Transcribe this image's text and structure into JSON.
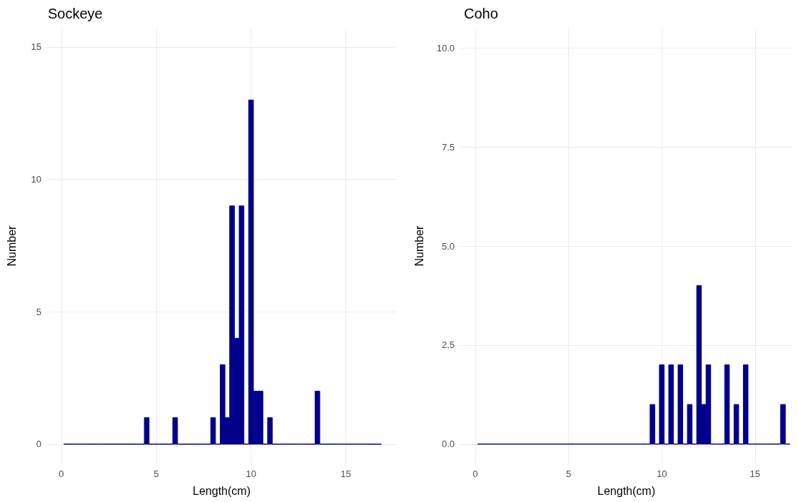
{
  "chart_data": [
    {
      "type": "histogram",
      "title": "Sockeye",
      "xlabel": "Length(cm)",
      "ylabel": "Number",
      "bins": [
        0.125,
        0.375,
        0.625,
        0.875,
        1.125,
        1.375,
        1.625,
        1.875,
        2.125,
        2.375,
        2.625,
        2.875,
        3.125,
        3.375,
        3.625,
        3.875,
        4.125,
        4.375,
        4.625,
        4.875,
        5.125,
        5.375,
        5.625,
        5.875,
        6.125,
        6.375,
        6.625,
        6.875,
        7.125,
        7.375,
        7.625,
        7.875,
        8.125,
        8.375,
        8.625,
        8.875,
        9.125,
        9.375,
        9.625,
        9.875,
        10.125,
        10.375,
        10.625,
        10.875,
        11.125,
        11.375,
        11.625,
        11.875,
        12.125,
        12.375,
        12.625,
        12.875,
        13.125,
        13.375,
        13.625,
        13.875,
        14.125,
        14.375,
        14.625,
        14.875,
        15.125,
        15.375,
        15.625,
        15.875,
        16.125,
        16.375,
        16.625,
        16.875
      ],
      "values": [
        0,
        0,
        0,
        0,
        0,
        0,
        0,
        0,
        0,
        0,
        0,
        0,
        0,
        0,
        0,
        0,
        0,
        1,
        0,
        0,
        0,
        0,
        0,
        1,
        0,
        0,
        0,
        0,
        0,
        0,
        0,
        1,
        0,
        3,
        1,
        9,
        4,
        9,
        0,
        13,
        2,
        2,
        0,
        1,
        0,
        0,
        0,
        0,
        0,
        0,
        0,
        0,
        0,
        2,
        0,
        0,
        0,
        0,
        0,
        0,
        0,
        0,
        0,
        0,
        0,
        0,
        0
      ],
      "color": "#00008b",
      "xlim": [
        -0.75,
        17.65
      ],
      "xticks": [
        0,
        5,
        10,
        15
      ],
      "ylim": [
        -0.73,
        15.7
      ],
      "yticks": [
        0,
        5,
        10,
        15
      ],
      "grid": true
    },
    {
      "type": "histogram",
      "title": "Coho",
      "xlabel": "Length(cm)",
      "ylabel": "Number",
      "bins": [
        0.125,
        0.375,
        0.625,
        0.875,
        1.125,
        1.375,
        1.625,
        1.875,
        2.125,
        2.375,
        2.625,
        2.875,
        3.125,
        3.375,
        3.625,
        3.875,
        4.125,
        4.375,
        4.625,
        4.875,
        5.125,
        5.375,
        5.625,
        5.875,
        6.125,
        6.375,
        6.625,
        6.875,
        7.125,
        7.375,
        7.625,
        7.875,
        8.125,
        8.375,
        8.625,
        8.875,
        9.125,
        9.375,
        9.625,
        9.875,
        10.125,
        10.375,
        10.625,
        10.875,
        11.125,
        11.375,
        11.625,
        11.875,
        12.125,
        12.375,
        12.625,
        12.875,
        13.125,
        13.375,
        13.625,
        13.875,
        14.125,
        14.375,
        14.625,
        14.875,
        15.125,
        15.375,
        15.625,
        15.875,
        16.125,
        16.375,
        16.625,
        16.875
      ],
      "values": [
        0,
        0,
        0,
        0,
        0,
        0,
        0,
        0,
        0,
        0,
        0,
        0,
        0,
        0,
        0,
        0,
        0,
        0,
        0,
        0,
        0,
        0,
        0,
        0,
        0,
        0,
        0,
        0,
        0,
        0,
        0,
        0,
        0,
        0,
        0,
        0,
        0,
        1,
        0,
        2,
        0,
        2,
        0,
        2,
        0,
        1,
        0,
        4,
        1,
        2,
        0,
        0,
        0,
        2,
        0,
        1,
        0,
        2,
        0,
        0,
        0,
        0,
        0,
        0,
        0,
        1,
        0
      ],
      "color": "#00008b",
      "xlim": [
        -0.8,
        17.0
      ],
      "xticks": [
        0,
        5,
        10,
        15
      ],
      "ylim": [
        -0.49,
        10.49
      ],
      "yticks": [
        {
          "value": 0,
          "label": "0.0"
        },
        {
          "value": 2.5,
          "label": "2.5"
        },
        {
          "value": 5,
          "label": "5.0"
        },
        {
          "value": 7.5,
          "label": "7.5"
        },
        {
          "value": 10,
          "label": "10.0"
        }
      ],
      "grid": true
    }
  ]
}
